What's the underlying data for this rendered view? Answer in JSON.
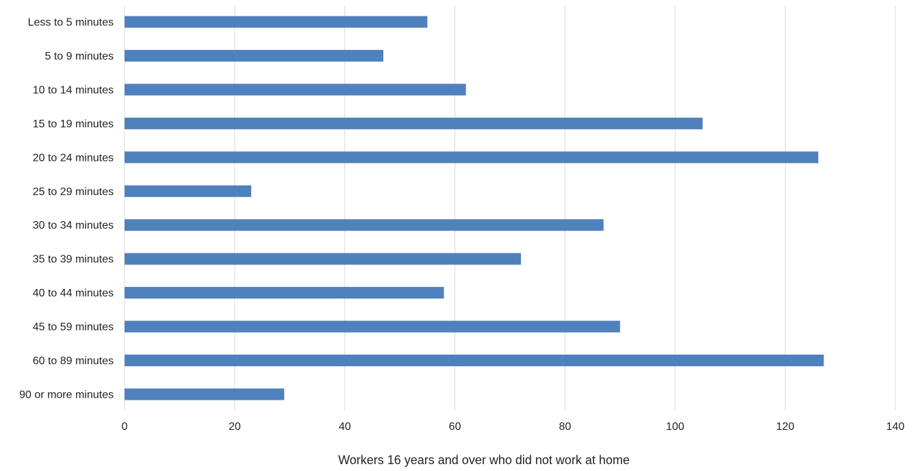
{
  "chart_data": {
    "type": "bar",
    "orientation": "horizontal",
    "categories": [
      "Less to 5 minutes",
      "5 to 9 minutes",
      "10 to 14 minutes",
      "15 to 19 minutes",
      "20 to 24 minutes",
      "25 to 29 minutes",
      "30 to 34 minutes",
      "35 to 39 minutes",
      "40 to 44 minutes",
      "45 to 59 minutes",
      "60 to 89 minutes",
      "90 or more minutes"
    ],
    "values": [
      55,
      47,
      62,
      105,
      126,
      23,
      87,
      72,
      58,
      90,
      127,
      29
    ],
    "title": "",
    "xlabel": "Workers 16 years and over who did not work at home",
    "ylabel": "",
    "xlim": [
      0,
      140
    ],
    "xticks": [
      "0",
      "20",
      "40",
      "60",
      "80",
      "100",
      "120",
      "140"
    ],
    "grid": true,
    "legend": "none",
    "bar_color": "#4f81bd",
    "grid_color": "#d9d9d9"
  }
}
